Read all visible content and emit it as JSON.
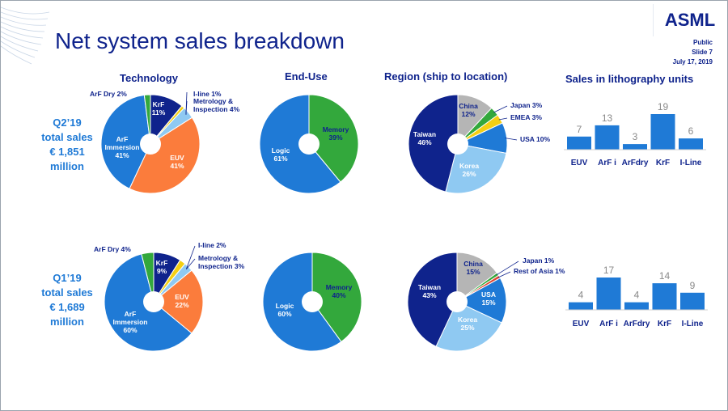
{
  "page": {
    "title": "Net system sales breakdown",
    "logo_text": "ASML",
    "meta": [
      "Public",
      "Slide 7",
      "July 17, 2019"
    ]
  },
  "headers": {
    "technology": "Technology",
    "end_use": "End-Use",
    "region": "Region (ship to location)",
    "units": "Sales in lithography units"
  },
  "quarters": {
    "q2": [
      "Q2’19",
      "total sales",
      "€ 1,851",
      "million"
    ],
    "q1": [
      "Q1’19",
      "total sales",
      "€ 1,689",
      "million"
    ]
  },
  "colors": {
    "navy": "#0f238c",
    "blue": "#1f7ad6",
    "light_blue": "#8fc9f2",
    "green": "#33a83c",
    "orange": "#fb7c3c",
    "yellow": "#f4cf13",
    "gray": "#b5b5b5",
    "red": "#e0432f"
  },
  "chart_data": [
    {
      "type": "pie",
      "title": "Technology",
      "period": "Q2’19",
      "slices": [
        {
          "label": "KrF",
          "value": 11,
          "color": "#0f238c"
        },
        {
          "label": "I-line",
          "value": 1,
          "color": "#f4cf13"
        },
        {
          "label": "Metrology & Inspection",
          "value": 4,
          "color": "#8fc9f2"
        },
        {
          "label": "EUV",
          "value": 41,
          "color": "#fb7c3c"
        },
        {
          "label": "ArF Immersion",
          "value": 41,
          "color": "#1f7ad6"
        },
        {
          "label": "ArF Dry",
          "value": 2,
          "color": "#33a83c"
        }
      ],
      "labels": [
        {
          "lines": [
            "KrF",
            "11%"
          ],
          "fill": "#ffffff"
        },
        {
          "lines": [
            "I-line 1%"
          ],
          "fill": "#0f238c"
        },
        {
          "lines": [
            "Metrology &",
            "Inspection 4%"
          ],
          "fill": "#0f238c"
        },
        {
          "lines": [
            "EUV",
            "41%"
          ],
          "fill": "#ffffff"
        },
        {
          "lines": [
            "ArF",
            "Immersion",
            "41%"
          ],
          "fill": "#ffffff"
        },
        {
          "lines": [
            "ArF Dry 2%"
          ],
          "fill": "#0f238c"
        }
      ]
    },
    {
      "type": "pie",
      "title": "End-Use",
      "period": "Q2’19",
      "slices": [
        {
          "label": "Memory",
          "value": 39,
          "color": "#33a83c"
        },
        {
          "label": "Logic",
          "value": 61,
          "color": "#1f7ad6"
        }
      ],
      "labels": [
        {
          "lines": [
            "Memory",
            "39%"
          ],
          "fill": "#0f238c"
        },
        {
          "lines": [
            "Logic",
            "61%"
          ],
          "fill": "#ffffff"
        }
      ]
    },
    {
      "type": "pie",
      "title": "Region (ship to location)",
      "period": "Q2’19",
      "slices": [
        {
          "label": "China",
          "value": 12,
          "color": "#b5b5b5"
        },
        {
          "label": "Japan",
          "value": 3,
          "color": "#33a83c"
        },
        {
          "label": "EMEA",
          "value": 3,
          "color": "#f4cf13"
        },
        {
          "label": "USA",
          "value": 10,
          "color": "#1f7ad6"
        },
        {
          "label": "Korea",
          "value": 26,
          "color": "#8fc9f2"
        },
        {
          "label": "Taiwan",
          "value": 46,
          "color": "#0f238c"
        }
      ],
      "labels": [
        {
          "lines": [
            "China",
            "12%"
          ],
          "fill": "#0f238c"
        },
        {
          "lines": [
            "Japan 3%"
          ],
          "fill": "#0f238c"
        },
        {
          "lines": [
            "EMEA 3%"
          ],
          "fill": "#0f238c"
        },
        {
          "lines": [
            "USA 10%"
          ],
          "fill": "#0f238c"
        },
        {
          "lines": [
            "Korea",
            "26%"
          ],
          "fill": "#ffffff"
        },
        {
          "lines": [
            "Taiwan",
            "46%"
          ],
          "fill": "#ffffff"
        }
      ]
    },
    {
      "type": "bar",
      "title": "Sales in lithography units",
      "period": "Q2’19",
      "categories": [
        "EUV",
        "ArF i",
        "ArFdry",
        "KrF",
        "I-Line"
      ],
      "values": [
        7,
        13,
        3,
        19,
        6
      ]
    },
    {
      "type": "pie",
      "title": "Technology",
      "period": "Q1’19",
      "slices": [
        {
          "label": "KrF",
          "value": 9,
          "color": "#0f238c"
        },
        {
          "label": "I-line",
          "value": 2,
          "color": "#f4cf13"
        },
        {
          "label": "Metrology & Inspection",
          "value": 3,
          "color": "#8fc9f2"
        },
        {
          "label": "EUV",
          "value": 22,
          "color": "#fb7c3c"
        },
        {
          "label": "ArF Immersion",
          "value": 60,
          "color": "#1f7ad6"
        },
        {
          "label": "ArF Dry",
          "value": 4,
          "color": "#33a83c"
        }
      ],
      "labels": [
        {
          "lines": [
            "KrF",
            "9%"
          ],
          "fill": "#ffffff"
        },
        {
          "lines": [
            "I-line 2%"
          ],
          "fill": "#0f238c"
        },
        {
          "lines": [
            "Metrology &",
            "Inspection 3%"
          ],
          "fill": "#0f238c"
        },
        {
          "lines": [
            "EUV",
            "22%"
          ],
          "fill": "#ffffff"
        },
        {
          "lines": [
            "ArF",
            "Immersion",
            "60%"
          ],
          "fill": "#ffffff"
        },
        {
          "lines": [
            "ArF Dry 4%"
          ],
          "fill": "#0f238c"
        }
      ]
    },
    {
      "type": "pie",
      "title": "End-Use",
      "period": "Q1’19",
      "slices": [
        {
          "label": "Memory",
          "value": 40,
          "color": "#33a83c"
        },
        {
          "label": "Logic",
          "value": 60,
          "color": "#1f7ad6"
        }
      ],
      "labels": [
        {
          "lines": [
            "Memory",
            "40%"
          ],
          "fill": "#0f238c"
        },
        {
          "lines": [
            "Logic",
            "60%"
          ],
          "fill": "#ffffff"
        }
      ]
    },
    {
      "type": "pie",
      "title": "Region (ship to location)",
      "period": "Q1’19",
      "slices": [
        {
          "label": "China",
          "value": 15,
          "color": "#b5b5b5"
        },
        {
          "label": "Japan",
          "value": 1,
          "color": "#33a83c"
        },
        {
          "label": "Rest of Asia",
          "value": 1,
          "color": "#e0432f"
        },
        {
          "label": "USA",
          "value": 15,
          "color": "#1f7ad6"
        },
        {
          "label": "Korea",
          "value": 25,
          "color": "#8fc9f2"
        },
        {
          "label": "Taiwan",
          "value": 43,
          "color": "#0f238c"
        }
      ],
      "labels": [
        {
          "lines": [
            "China",
            "15%"
          ],
          "fill": "#0f238c"
        },
        {
          "lines": [
            "Japan 1%"
          ],
          "fill": "#0f238c"
        },
        {
          "lines": [
            "Rest of Asia 1%"
          ],
          "fill": "#0f238c"
        },
        {
          "lines": [
            "USA",
            "15%"
          ],
          "fill": "#ffffff"
        },
        {
          "lines": [
            "Korea",
            "25%"
          ],
          "fill": "#ffffff"
        },
        {
          "lines": [
            "Taiwan",
            "43%"
          ],
          "fill": "#ffffff"
        }
      ]
    },
    {
      "type": "bar",
      "title": "Sales in lithography units",
      "period": "Q1’19",
      "categories": [
        "EUV",
        "ArF i",
        "ArFdry",
        "KrF",
        "I-Line"
      ],
      "values": [
        4,
        17,
        4,
        14,
        9
      ]
    }
  ]
}
